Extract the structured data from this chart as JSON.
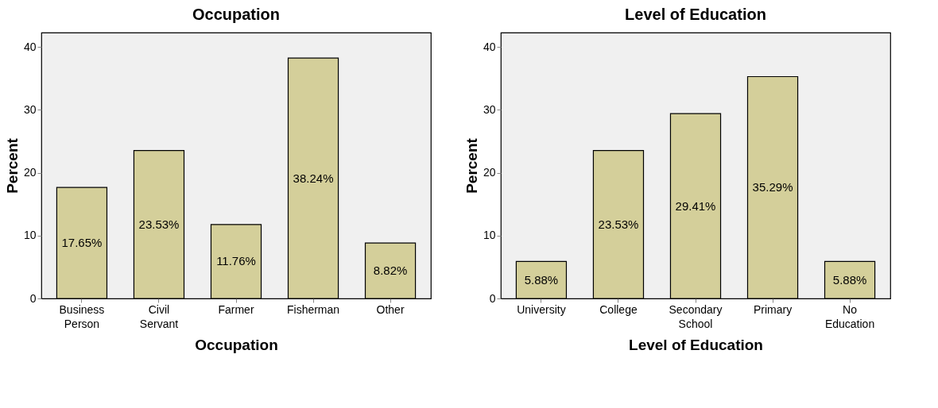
{
  "chart_data": [
    {
      "type": "bar",
      "title": "Occupation",
      "xlabel": "Occupation",
      "ylabel": "Percent",
      "categories": [
        "Business Person",
        "Civil Servant",
        "Farmer",
        "Fisherman",
        "Other"
      ],
      "series": [
        {
          "color": "#d4cf9a",
          "values": [
            17.65,
            23.53,
            11.76,
            38.24,
            8.82
          ]
        }
      ],
      "value_labels": [
        "17.65%",
        "23.53%",
        "11.76%",
        "38.24%",
        "8.82%"
      ],
      "ylim": [
        0,
        42.3
      ],
      "yticks": [
        0,
        10,
        20,
        30,
        40
      ],
      "grid": false
    },
    {
      "type": "bar",
      "title": "Level of Education",
      "xlabel": "Level of Education",
      "ylabel": "Percent",
      "categories": [
        "University",
        "College",
        "Secondary School",
        "Primary",
        "No Education"
      ],
      "series": [
        {
          "color": "#d4cf9a",
          "values": [
            5.88,
            23.53,
            29.41,
            35.29,
            5.88
          ]
        }
      ],
      "value_labels": [
        "5.88%",
        "23.53%",
        "29.41%",
        "35.29%",
        "5.88%"
      ],
      "ylim": [
        0,
        42.3
      ],
      "yticks": [
        0,
        10,
        20,
        30,
        40
      ],
      "grid": false
    }
  ]
}
